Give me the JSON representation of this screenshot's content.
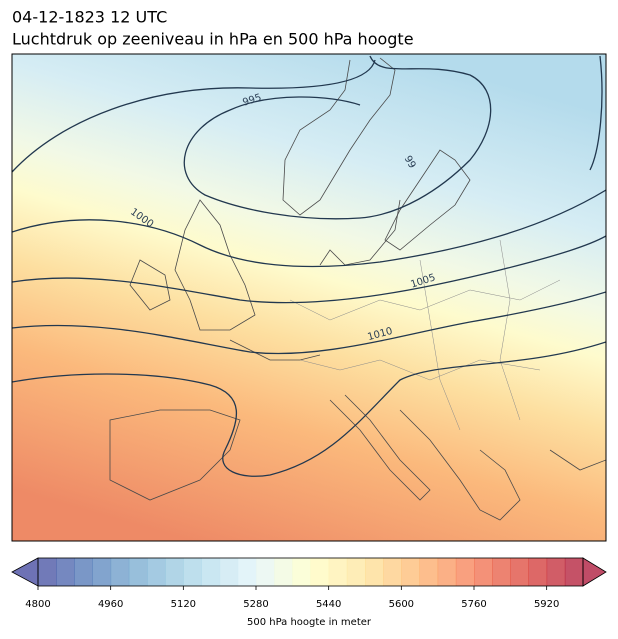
{
  "header": {
    "title": "04-12-1823 12 UTC",
    "subtitle": "Luchtdruk op zeeniveau in hPa en 500 hPa hoogte"
  },
  "map": {
    "contour_labels": [
      "995",
      "99",
      "1000",
      "1005",
      "1010"
    ]
  },
  "colorbar": {
    "lim": [
      4800,
      6000
    ],
    "ticks": [
      4800,
      4960,
      5120,
      5280,
      5440,
      5600,
      5760,
      5920
    ],
    "label": "500 hPa hoogte in meter"
  }
}
